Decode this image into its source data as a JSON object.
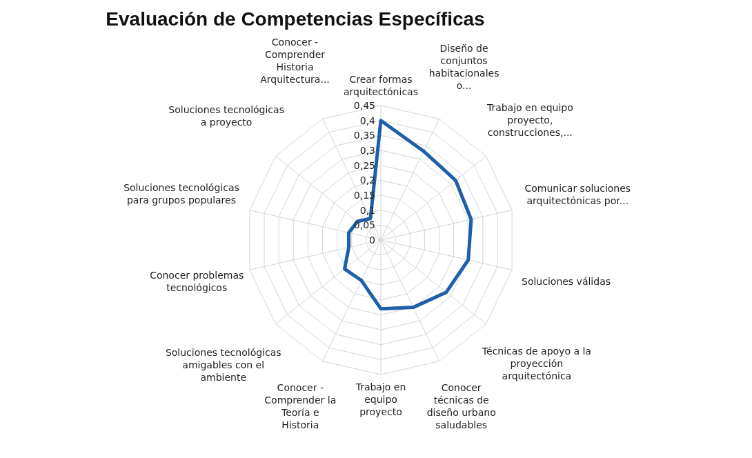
{
  "chart_data": {
    "type": "radar",
    "title": "Evaluación de Competencias Específicas",
    "categories": [
      "Crear formas arquitectónicas",
      "Diseño de conjuntos habitacionales o...",
      "Trabajo en equipo proyecto, construcciones,...",
      "Comunicar soluciones arquitectónicas por...",
      "Soluciones válidas",
      "Técnicas de apoyo a la proyección arquitectónica",
      "Conocer técnicas de diseño urbano saludables",
      "Trabajo en equipo proyecto",
      "Conocer - Comprender la Teoría e Historia",
      "Soluciones tecnológicas amigables con el ambiente",
      "Conocer problemas tecnológicos",
      "Soluciones tecnológicas para grupos populares",
      "Soluciones tecnológicas a proyecto",
      "Conocer - Comprender Historia Arquitectura..."
    ],
    "series": [
      {
        "color": "#1f5ea8",
        "values": [
          0.4,
          0.33,
          0.32,
          0.31,
          0.3,
          0.28,
          0.25,
          0.23,
          0.15,
          0.155,
          0.11,
          0.11,
          0.1,
          0.08
        ]
      }
    ],
    "ylim": [
      0,
      0.45
    ],
    "yticks": [
      {
        "value": 0,
        "label": "0"
      },
      {
        "value": 0.05,
        "label": "0,05"
      },
      {
        "value": 0.1,
        "label": "0,1"
      },
      {
        "value": 0.15,
        "label": "0,15"
      },
      {
        "value": 0.2,
        "label": "0,2"
      },
      {
        "value": 0.25,
        "label": "0,25"
      },
      {
        "value": 0.3,
        "label": "0,3"
      },
      {
        "value": 0.35,
        "label": "0,35"
      },
      {
        "value": 0.4,
        "label": "0,4"
      },
      {
        "value": 0.45,
        "label": "0,45"
      }
    ],
    "grid": true,
    "marker": "none",
    "legend": false
  }
}
